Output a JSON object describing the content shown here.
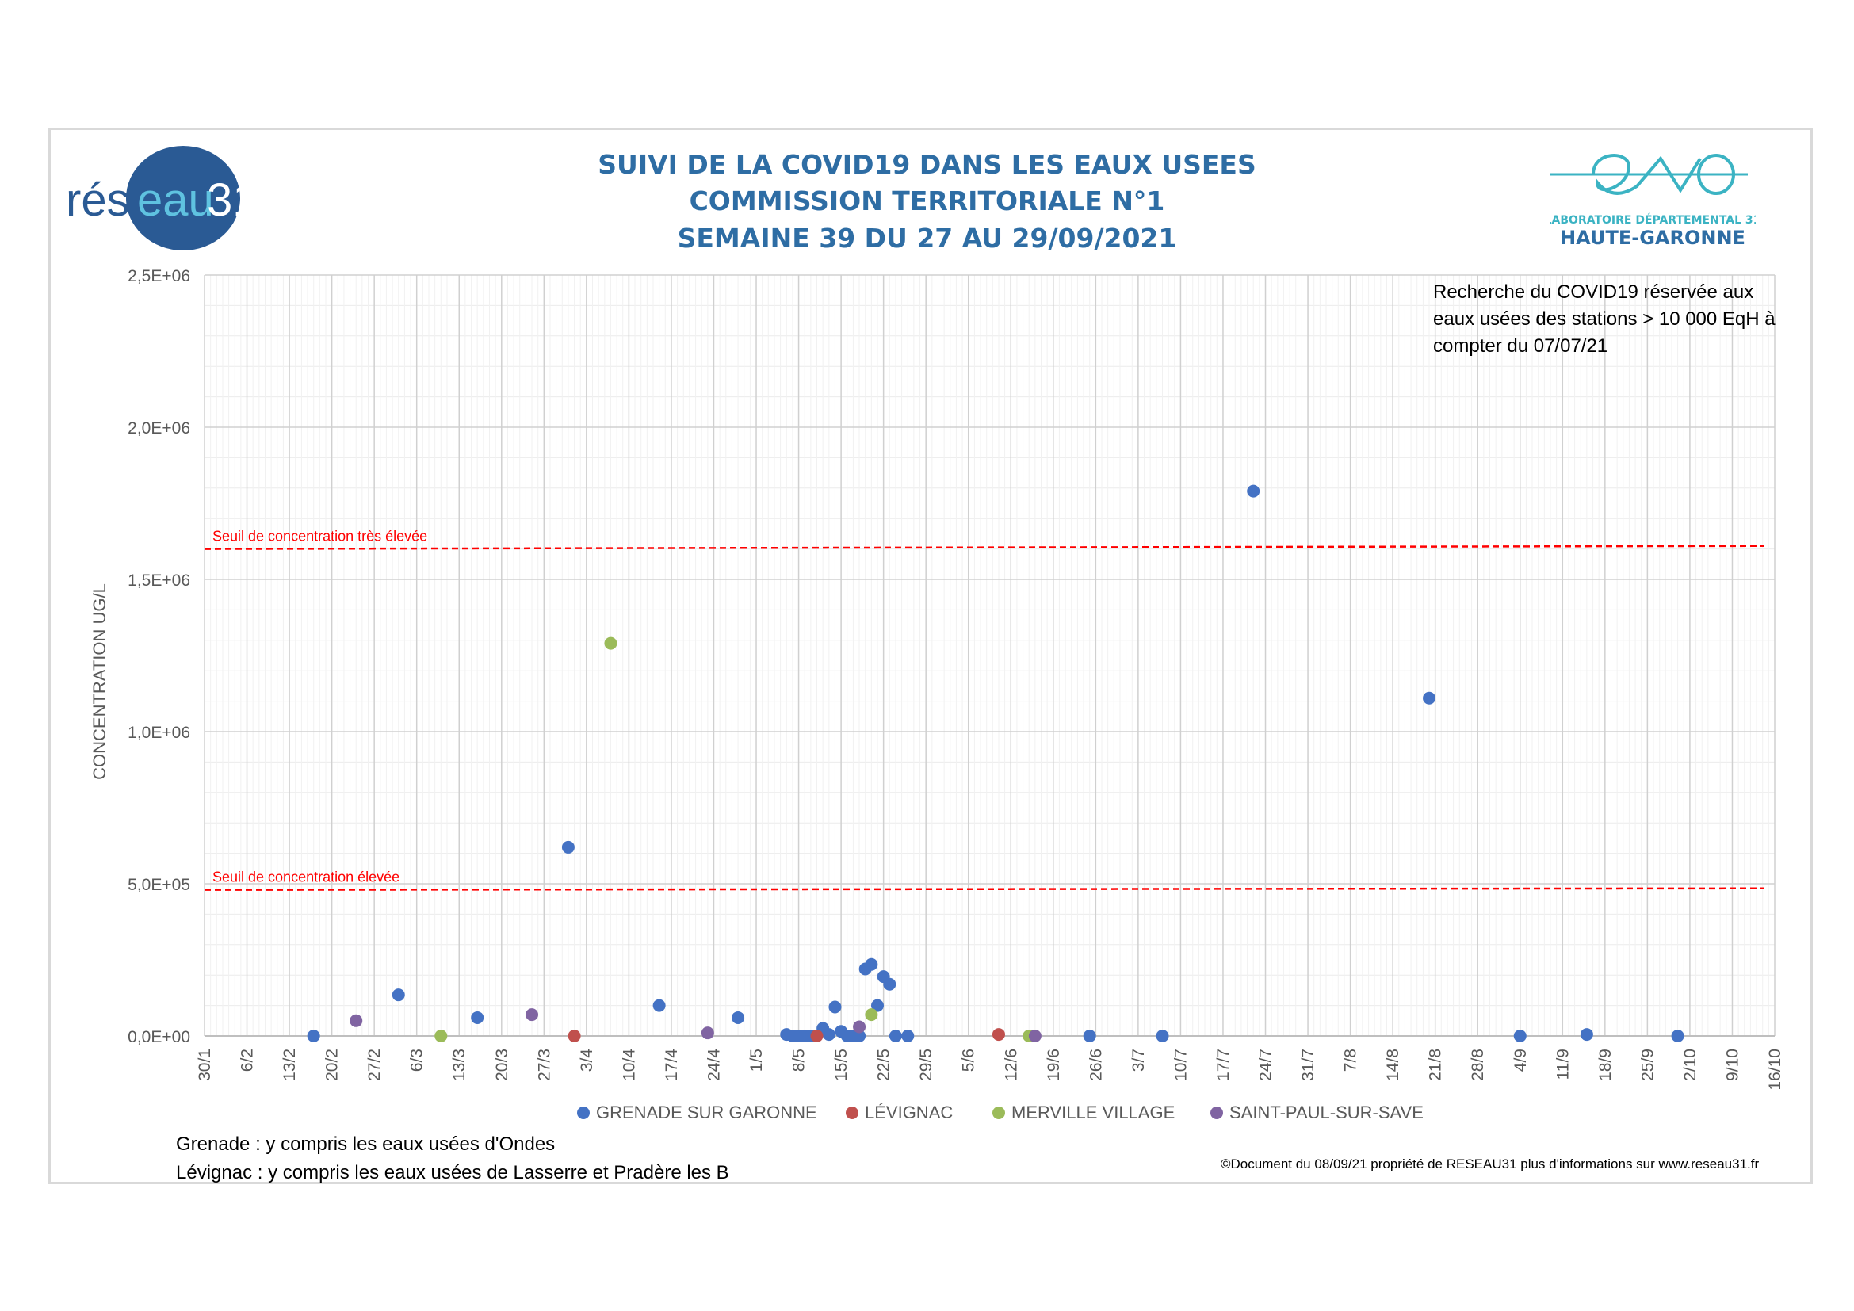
{
  "titles": {
    "line1": "SUIVI DE LA COVID19 DANS LES EAUX USEES",
    "line2": "COMMISSION TERRITORIALE N°1",
    "line3": "SEMAINE 39 DU 27 AU 29/09/2021"
  },
  "logos": {
    "reseau": "réseau31",
    "eva_text": "eva",
    "eva_sub1": "LABORATOIRE DÉPARTEMENTAL 31",
    "eva_sub2": "HAUTE-GARONNE"
  },
  "info_box": "Recherche du COVID19 réservée aux eaux usées des stations > 10 000 EqH à compter du 07/07/21",
  "notes": {
    "grenade": "Grenade : y compris les eaux usées d'Ondes",
    "levignac": "Lévignac : y compris les eaux usées de Lasserre et Pradère les B"
  },
  "copyright": "©Document du 08/09/21 propriété de RESEAU31 plus d'informations sur www.reseau31.fr",
  "colors": {
    "grenade": "#4472c4",
    "levignac": "#c0504d",
    "merville": "#9bbb59",
    "saint_paul": "#8064a2",
    "threshold": "#ff0000",
    "title": "#2e6da4"
  },
  "chart_data": {
    "type": "scatter",
    "ylabel": "CONCENTRATION UG/L",
    "ylim": [
      0,
      2500000
    ],
    "y_ticks": [
      "0,0E+00",
      "5,0E+05",
      "1,0E+06",
      "1,5E+06",
      "2,0E+06",
      "2,5E+06"
    ],
    "x_ticks": [
      "30/1",
      "6/2",
      "13/2",
      "20/2",
      "27/2",
      "6/3",
      "13/3",
      "20/3",
      "27/3",
      "3/4",
      "10/4",
      "17/4",
      "24/4",
      "1/5",
      "8/5",
      "15/5",
      "22/5",
      "29/5",
      "5/6",
      "12/6",
      "19/6",
      "26/6",
      "3/7",
      "10/7",
      "17/7",
      "24/7",
      "31/7",
      "7/8",
      "14/8",
      "21/8",
      "28/8",
      "4/9",
      "11/9",
      "18/9",
      "25/9",
      "2/10",
      "9/10",
      "16/10"
    ],
    "x_tick_days": [
      0,
      7,
      14,
      21,
      28,
      35,
      42,
      49,
      56,
      63,
      70,
      77,
      84,
      91,
      98,
      105,
      112,
      119,
      126,
      133,
      140,
      147,
      154,
      161,
      168,
      175,
      182,
      189,
      196,
      203,
      210,
      217,
      224,
      231,
      238,
      245,
      252,
      259
    ],
    "x_unit": "days since 30/1/2021",
    "thresholds": [
      {
        "label": "Seuil de concentration très élevée",
        "y_start": 1600000,
        "y_end": 1610000
      },
      {
        "label": "Seuil de concentration élevée",
        "y_start": 480000,
        "y_end": 485000
      }
    ],
    "series": [
      {
        "name": "GRENADE SUR GARONNE",
        "color": "#4472c4",
        "x": [
          18,
          32,
          45,
          60,
          75,
          88,
          96,
          97,
          98,
          99,
          100,
          102,
          103,
          104,
          105,
          106,
          107,
          108,
          109,
          110,
          111,
          112,
          113,
          114,
          116,
          146,
          158,
          173,
          202,
          217,
          228,
          243
        ],
        "y": [
          0,
          135000,
          60000,
          620000,
          100000,
          60000,
          5000,
          0,
          0,
          0,
          0,
          25000,
          5000,
          95000,
          15000,
          0,
          0,
          0,
          220000,
          235000,
          100000,
          195000,
          170000,
          0,
          0,
          0,
          0,
          1790000,
          1110000,
          0,
          5000,
          0
        ]
      },
      {
        "name": "LÉVIGNAC",
        "color": "#c0504d",
        "x": [
          61,
          101,
          131
        ],
        "y": [
          0,
          0,
          5000
        ]
      },
      {
        "name": "MERVILLE VILLAGE",
        "color": "#9bbb59",
        "x": [
          39,
          67,
          110,
          136
        ],
        "y": [
          0,
          1290000,
          70000,
          0
        ]
      },
      {
        "name": "SAINT-PAUL-SUR-SAVE",
        "color": "#8064a2",
        "x": [
          25,
          54,
          83,
          108,
          137
        ],
        "y": [
          50000,
          70000,
          10000,
          30000,
          0
        ]
      }
    ]
  }
}
